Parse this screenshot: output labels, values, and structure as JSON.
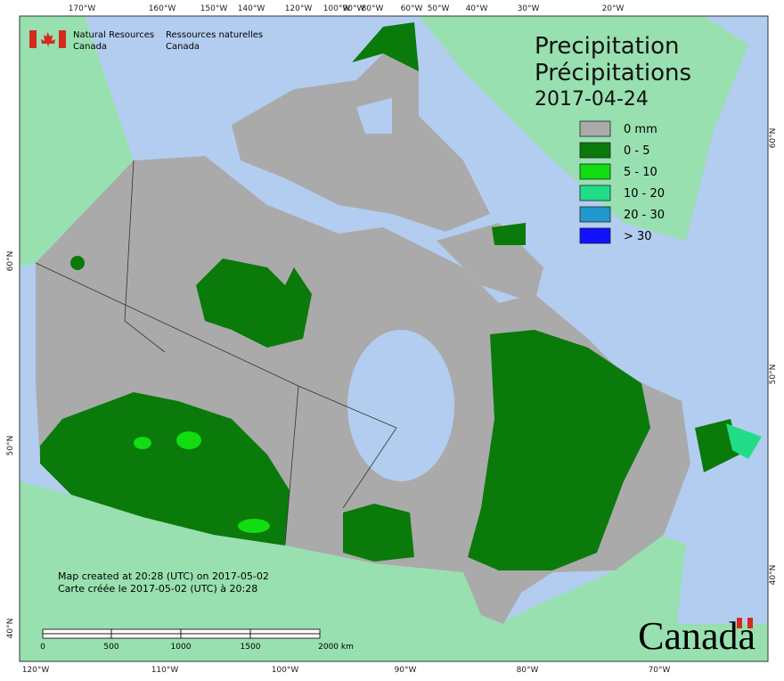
{
  "header": {
    "agency_en": "Natural Resources",
    "country_en": "Canada",
    "agency_fr": "Ressources naturelles",
    "country_fr": "Canada"
  },
  "title": {
    "en": "Precipitation",
    "fr": "Précipitations",
    "date": "2017-04-24"
  },
  "legend": [
    {
      "label": "0 mm",
      "color": "#aaaaaa"
    },
    {
      "label": "0 - 5",
      "color": "#0a7a0a"
    },
    {
      "label": "5 - 10",
      "color": "#11dd11"
    },
    {
      "label": "10 - 20",
      "color": "#22dd88"
    },
    {
      "label": "20 - 30",
      "color": "#2299cc"
    },
    {
      "label": "> 30",
      "color": "#1111ff"
    }
  ],
  "top_longitudes": [
    "170°W",
    "160°W",
    "150°W",
    "140°W",
    "120°W",
    "100°W",
    "90°W",
    "80°W",
    "60°W",
    "50°W",
    "40°W",
    "30°W",
    "20°W"
  ],
  "bottom_longitudes": [
    "120°W",
    "110°W",
    "100°W",
    "90°W",
    "80°W",
    "70°W"
  ],
  "left_latitudes": [
    "60°N",
    "50°N",
    "40°N"
  ],
  "right_latitudes": [
    "60°N",
    "50°N",
    "40°N"
  ],
  "footer": {
    "created_en": "Map created at 20:28 (UTC) on 2017-05-02",
    "created_fr": "Carte créée le 2017-05-02 (UTC) à 20:28"
  },
  "scale_bar": [
    "0",
    "500",
    "1000",
    "1500",
    "2000 km"
  ],
  "wordmark": "Canada"
}
